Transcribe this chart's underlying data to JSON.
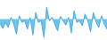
{
  "values": [
    -1.2,
    -2.8,
    -1.0,
    -2.5,
    0.5,
    -1.5,
    -4.5,
    1.0,
    -1.0,
    -0.5,
    -3.0,
    0.5,
    -4.8,
    2.0,
    -1.0,
    -0.5,
    -5.5,
    3.5,
    -0.5,
    0.5,
    -1.5,
    -3.5,
    0.8,
    -0.5,
    -1.8,
    0.5,
    -4.2,
    2.5,
    -1.0,
    -0.5,
    -2.0,
    1.5,
    -0.5,
    -3.8,
    2.0,
    -0.8,
    -2.5,
    1.0,
    -1.5,
    -3.0
  ],
  "line_color": "#4baee8",
  "fill_color": "#5bbfef",
  "background_color": "#ffffff",
  "baseline": 0.0,
  "linewidth": 0.7
}
